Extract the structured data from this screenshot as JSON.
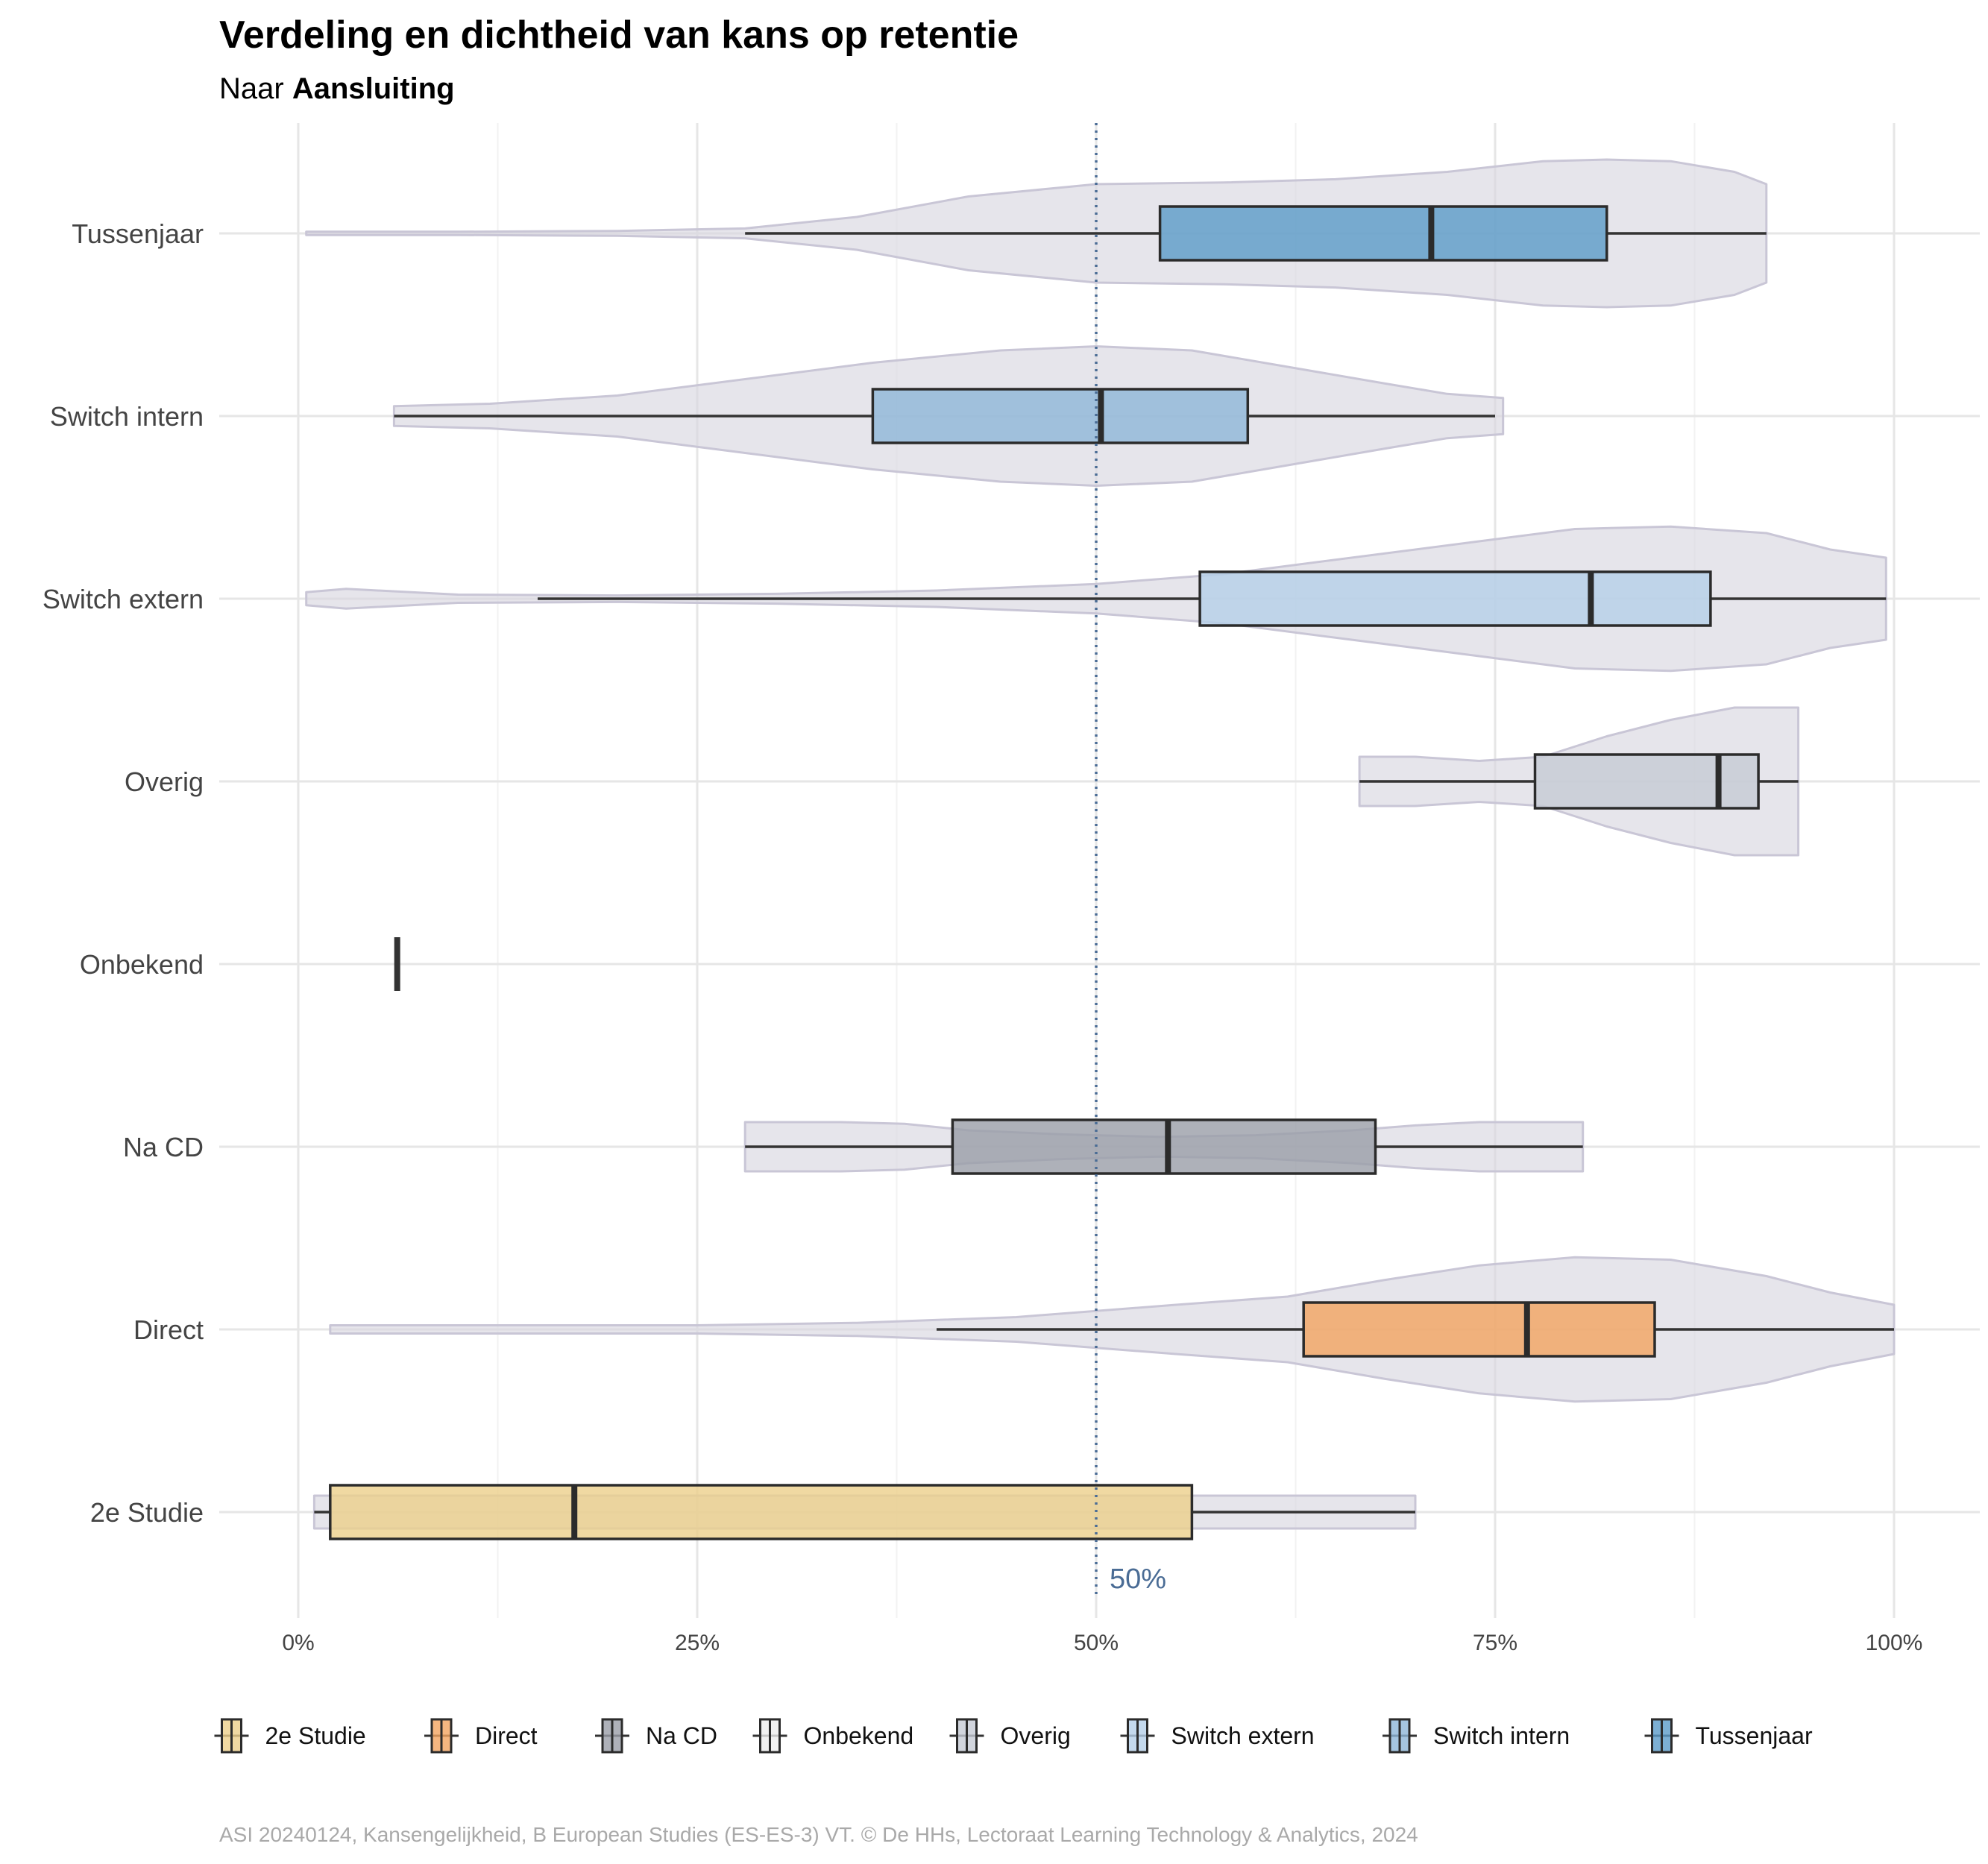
{
  "chart_data": {
    "type": "boxplot-violin",
    "title": "Verdeling en dichtheid van kans op retentie",
    "subtitle_prefix": "Naar ",
    "subtitle_bold": "Aansluiting",
    "x_ticks": [
      "0%",
      "25%",
      "50%",
      "75%",
      "100%"
    ],
    "xlim": [
      0,
      100
    ],
    "reference_line": {
      "value": 50,
      "label": "50%",
      "color": "#4a6c95"
    },
    "violin_color": "#d9d7e1",
    "groups": [
      {
        "name": "Tussenjaar",
        "color": "#5b9bc8",
        "whisker_low": 28,
        "q1": 54,
        "median": 71,
        "q3": 82,
        "whisker_high": 92,
        "violin": {
          "min": 0.5,
          "max": 92,
          "points": [
            [
              0.5,
              0.02
            ],
            [
              10,
              0.02
            ],
            [
              20,
              0.03
            ],
            [
              28,
              0.06
            ],
            [
              35,
              0.2
            ],
            [
              42,
              0.45
            ],
            [
              50,
              0.6
            ],
            [
              58,
              0.62
            ],
            [
              65,
              0.66
            ],
            [
              72,
              0.75
            ],
            [
              78,
              0.88
            ],
            [
              82,
              0.9
            ],
            [
              86,
              0.88
            ],
            [
              90,
              0.75
            ],
            [
              92,
              0.6
            ]
          ]
        }
      },
      {
        "name": "Switch intern",
        "color": "#8fb7d8",
        "whisker_low": 6,
        "q1": 36,
        "median": 50.3,
        "q3": 59.5,
        "whisker_high": 75,
        "violin": {
          "min": 6,
          "max": 75.5,
          "points": [
            [
              6,
              0.12
            ],
            [
              12,
              0.15
            ],
            [
              20,
              0.25
            ],
            [
              28,
              0.45
            ],
            [
              36,
              0.65
            ],
            [
              44,
              0.8
            ],
            [
              50,
              0.85
            ],
            [
              56,
              0.8
            ],
            [
              62,
              0.6
            ],
            [
              68,
              0.4
            ],
            [
              72,
              0.27
            ],
            [
              75.5,
              0.22
            ]
          ]
        }
      },
      {
        "name": "Switch extern",
        "color": "#b5d0e8",
        "whisker_low": 15,
        "q1": 56.5,
        "median": 81,
        "q3": 88.5,
        "whisker_high": 99.5,
        "violin": {
          "min": 0.5,
          "max": 99.5,
          "points": [
            [
              0.5,
              0.08
            ],
            [
              3,
              0.12
            ],
            [
              10,
              0.05
            ],
            [
              20,
              0.04
            ],
            [
              30,
              0.06
            ],
            [
              40,
              0.1
            ],
            [
              50,
              0.18
            ],
            [
              58,
              0.3
            ],
            [
              66,
              0.5
            ],
            [
              74,
              0.7
            ],
            [
              80,
              0.85
            ],
            [
              86,
              0.88
            ],
            [
              92,
              0.8
            ],
            [
              96,
              0.6
            ],
            [
              99.5,
              0.5
            ]
          ]
        }
      },
      {
        "name": "Overig",
        "color": "#c6cad4",
        "whisker_low": 66.5,
        "q1": 77.5,
        "median": 89,
        "q3": 91.5,
        "whisker_high": 94,
        "violin": {
          "min": 66.5,
          "max": 94,
          "points": [
            [
              66.5,
              0.3
            ],
            [
              70,
              0.3
            ],
            [
              74,
              0.25
            ],
            [
              78,
              0.3
            ],
            [
              82,
              0.55
            ],
            [
              86,
              0.75
            ],
            [
              90,
              0.9
            ],
            [
              94,
              0.9
            ]
          ]
        }
      },
      {
        "name": "Onbekend",
        "color": "#eeeeee",
        "whisker_low": 6.2,
        "q1": 6.2,
        "median": 6.2,
        "q3": 6.2,
        "whisker_high": 6.2,
        "violin": null
      },
      {
        "name": "Na CD",
        "color": "#9a9da8",
        "whisker_low": 28,
        "q1": 41,
        "median": 54.5,
        "q3": 67.5,
        "whisker_high": 80.5,
        "violin": {
          "min": 28,
          "max": 80.5,
          "points": [
            [
              28,
              0.3
            ],
            [
              34,
              0.3
            ],
            [
              38,
              0.28
            ],
            [
              42,
              0.2
            ],
            [
              48,
              0.15
            ],
            [
              54,
              0.12
            ],
            [
              60,
              0.14
            ],
            [
              66,
              0.2
            ],
            [
              70,
              0.26
            ],
            [
              74,
              0.3
            ],
            [
              80.5,
              0.3
            ]
          ]
        }
      },
      {
        "name": "Direct",
        "color": "#f3a460",
        "whisker_low": 40,
        "q1": 63,
        "median": 77,
        "q3": 85,
        "whisker_high": 100,
        "violin": {
          "min": 2,
          "max": 100,
          "points": [
            [
              2,
              0.05
            ],
            [
              15,
              0.05
            ],
            [
              25,
              0.05
            ],
            [
              35,
              0.08
            ],
            [
              45,
              0.15
            ],
            [
              55,
              0.3
            ],
            [
              62,
              0.4
            ],
            [
              68,
              0.6
            ],
            [
              74,
              0.78
            ],
            [
              80,
              0.88
            ],
            [
              86,
              0.85
            ],
            [
              92,
              0.65
            ],
            [
              96,
              0.45
            ],
            [
              100,
              0.3
            ]
          ]
        }
      },
      {
        "name": "2e Studie",
        "color": "#ecd08b",
        "whisker_low": 1,
        "q1": 2,
        "median": 17.3,
        "q3": 56,
        "whisker_high": 70,
        "violin": {
          "min": 1,
          "max": 70,
          "points": [
            [
              1,
              0.2
            ],
            [
              10,
              0.2
            ],
            [
              20,
              0.2
            ],
            [
              30,
              0.2
            ],
            [
              40,
              0.2
            ],
            [
              50,
              0.2
            ],
            [
              60,
              0.2
            ],
            [
              70,
              0.2
            ]
          ]
        }
      }
    ],
    "legend_order": [
      "2e Studie",
      "Direct",
      "Na CD",
      "Onbekend",
      "Overig",
      "Switch extern",
      "Switch intern",
      "Tussenjaar"
    ],
    "legend_position": "bottom",
    "grid": true,
    "caption": "ASI 20240124, Kansengelijkheid, B European Studies (ES-ES-3) VT. © De HHs, Lectoraat Learning Technology & Analytics, 2024"
  }
}
